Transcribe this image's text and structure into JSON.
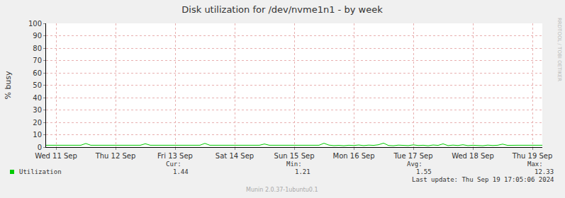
{
  "chart_data": {
    "type": "line",
    "title": "Disk utilization for /dev/nvme1n1 - by week",
    "y_label": "% busy",
    "categories": [
      null,
      null,
      "Wed 11 Sep",
      null,
      null,
      null,
      null,
      null,
      null,
      null,
      null,
      null,
      null,
      null,
      "Thu 12 Sep",
      null,
      null,
      null,
      null,
      null,
      null,
      null,
      null,
      null,
      null,
      null,
      "Fri 13 Sep",
      null,
      null,
      null,
      null,
      null,
      null,
      null,
      null,
      null,
      null,
      null,
      "Sat 14 Sep",
      null,
      null,
      null,
      null,
      null,
      null,
      null,
      null,
      null,
      null,
      null,
      "Sun 15 Sep",
      null,
      null,
      null,
      null,
      null,
      null,
      null,
      null,
      null,
      null,
      null,
      "Mon 16 Sep",
      null,
      null,
      null,
      null,
      null,
      null,
      null,
      null,
      null,
      null,
      null,
      "Tue 17 Sep",
      null,
      null,
      null,
      null,
      null,
      null,
      null,
      null,
      null,
      null,
      null,
      "Wed 18 Sep",
      null,
      null,
      null,
      null,
      null,
      null,
      null,
      null,
      null,
      null,
      null,
      "Thu 19 Sep",
      null,
      null
    ],
    "series": [
      {
        "name": "Utilization",
        "color": "#00cc00",
        "values": [
          1.5,
          1.5,
          1.5,
          1.5,
          1.5,
          1.5,
          1.5,
          1.5,
          2.9,
          1.5,
          1.5,
          1.5,
          1.5,
          1.5,
          1.5,
          1.5,
          1.5,
          1.5,
          1.5,
          1.5,
          2.7,
          1.5,
          1.5,
          1.5,
          1.5,
          1.6,
          1.5,
          1.5,
          1.5,
          1.5,
          1.5,
          1.5,
          3.0,
          1.5,
          1.5,
          1.5,
          1.5,
          1.5,
          1.5,
          1.5,
          1.5,
          1.5,
          1.5,
          1.5,
          2.5,
          1.5,
          1.5,
          1.5,
          1.5,
          1.5,
          1.5,
          1.5,
          1.5,
          1.5,
          1.5,
          1.5,
          3.1,
          1.6,
          1.2,
          1.4,
          1.1,
          1.5,
          1.3,
          1.7,
          1.2,
          1.6,
          1.4,
          1.9,
          3.2,
          1.3,
          1.1,
          1.6,
          1.4,
          1.2,
          1.8,
          1.3,
          1.5,
          1.1,
          1.7,
          1.4,
          2.6,
          1.2,
          1.6,
          1.3,
          1.9,
          1.2,
          1.5,
          1.4,
          1.1,
          1.6,
          1.3,
          1.5,
          2.4,
          1.4,
          1.6,
          1.5,
          1.5,
          1.6,
          1.5,
          1.4,
          1.5
        ]
      }
    ],
    "ylim": [
      0,
      100
    ],
    "yticks": [
      0,
      10,
      20,
      30,
      40,
      50,
      60,
      70,
      80,
      90,
      100
    ],
    "grid": true,
    "stats": [
      {
        "label": "Cur:",
        "value": 1.44
      },
      {
        "label": "Min:",
        "value": 1.21
      },
      {
        "label": "Avg:",
        "value": 1.55
      },
      {
        "label": "Max:",
        "value": 12.33
      }
    ],
    "last_update": "Last update: Thu Sep 19 17:05:06 2024",
    "footer": "Munin 2.0.37-1ubuntu0.1",
    "side_label": "RRDTOOL / TOBI OETIKER"
  }
}
